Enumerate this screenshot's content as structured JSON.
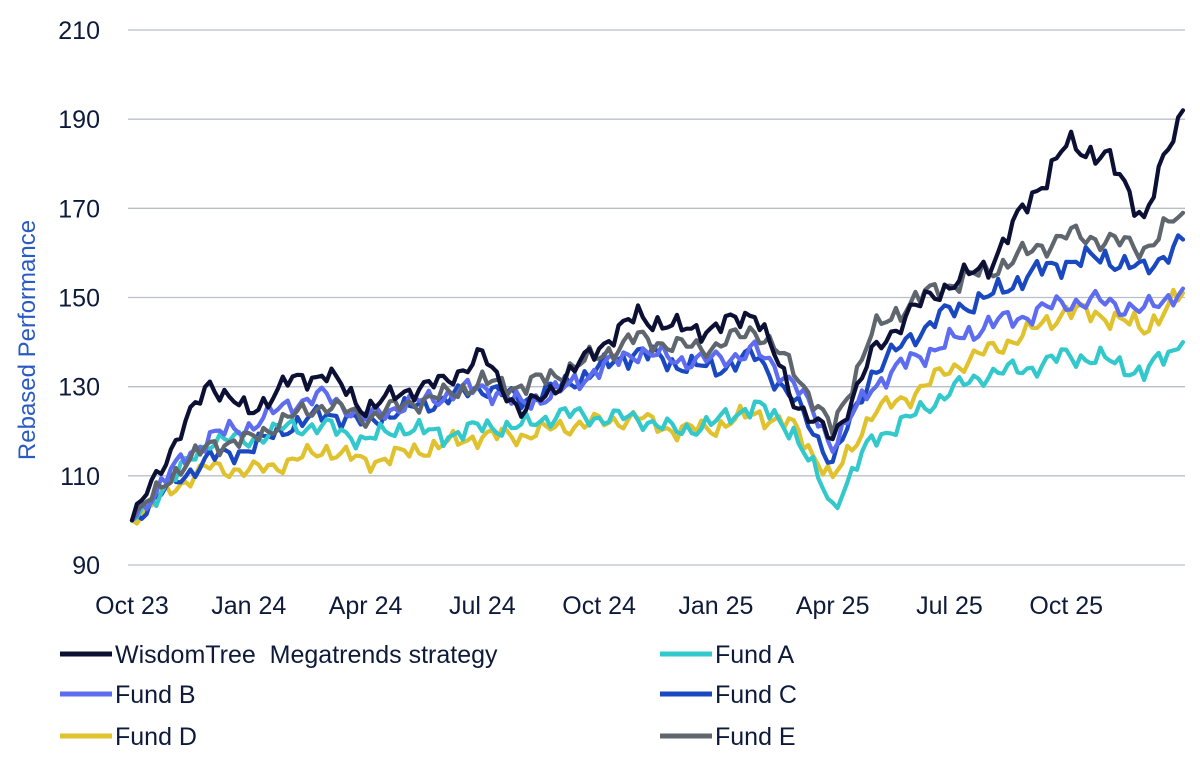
{
  "chart_data": {
    "type": "line",
    "title": "",
    "xlabel": "",
    "ylabel": "Rebased Performance",
    "ylim": [
      90,
      210
    ],
    "y_ticks": [
      "90",
      "110",
      "130",
      "150",
      "170",
      "190",
      "210"
    ],
    "x_ticks": [
      "Oct 23",
      "Jan 24",
      "Apr 24",
      "Jul 24",
      "Oct 24",
      "Jan 25",
      "Apr 25",
      "Jul 25",
      "Oct 25"
    ],
    "grid": true,
    "legend_position": "bottom",
    "x": [
      "Oct 23",
      "Nov 23",
      "Dec 23",
      "Jan 24",
      "Feb 24",
      "Mar 24",
      "Apr 24",
      "May 24",
      "Jun 24",
      "Jul 24",
      "Aug 24",
      "Sep 24",
      "Oct 24",
      "Nov 24",
      "Dec 24",
      "Jan 25",
      "Feb 25",
      "Mar 25",
      "Apr 25",
      "May 25",
      "Jun 25",
      "Jul 25",
      "Aug 25",
      "Sep 25",
      "Oct 25",
      "Nov 25",
      "Dec 25",
      "Jan 26"
    ],
    "series": [
      {
        "name": "WisdomTree  Megatrends strategy",
        "color": "#0b1034",
        "values": [
          100,
          116,
          131,
          124,
          131,
          133,
          125,
          129,
          131,
          137,
          124,
          131,
          139,
          146,
          143,
          143,
          147,
          127,
          118,
          137,
          147,
          153,
          157,
          171,
          184,
          182,
          168,
          192
        ]
      },
      {
        "name": "Fund A",
        "color": "#33c9cc",
        "values": [
          100,
          109,
          118,
          118,
          121,
          121,
          118,
          121,
          119,
          121,
          121,
          124,
          123,
          123,
          120,
          122,
          126,
          120,
          103,
          118,
          123,
          129,
          133,
          134,
          137,
          136,
          133,
          140
        ]
      },
      {
        "name": "Fund B",
        "color": "#5e6cf0",
        "values": [
          100,
          111,
          119,
          121,
          126,
          128,
          123,
          126,
          128,
          130,
          126,
          129,
          134,
          138,
          136,
          136,
          138,
          131,
          117,
          130,
          136,
          140,
          144,
          146,
          149,
          149,
          147,
          152
        ]
      },
      {
        "name": "Fund C",
        "color": "#1a48c0",
        "values": [
          100,
          108,
          114,
          116,
          121,
          124,
          122,
          125,
          127,
          130,
          127,
          130,
          134,
          138,
          135,
          134,
          137,
          127,
          113,
          133,
          141,
          147,
          150,
          155,
          158,
          159,
          156,
          163
        ]
      },
      {
        "name": "Fund D",
        "color": "#e0c22e",
        "values": [
          100,
          107,
          112,
          111,
          113,
          116,
          113,
          115,
          117,
          119,
          119,
          121,
          122,
          123,
          120,
          121,
          124,
          121,
          109,
          124,
          128,
          134,
          138,
          142,
          147,
          146,
          143,
          151
        ]
      },
      {
        "name": "Fund E",
        "color": "#5f666e",
        "values": [
          100,
          110,
          117,
          118,
          123,
          126,
          123,
          126,
          128,
          131,
          130,
          133,
          137,
          141,
          139,
          139,
          143,
          134,
          120,
          142,
          149,
          153,
          156,
          160,
          164,
          163,
          161,
          169
        ]
      }
    ]
  }
}
